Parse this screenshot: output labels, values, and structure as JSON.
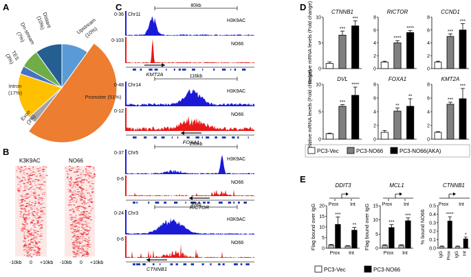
{
  "panels": {
    "A": "A",
    "B": "B",
    "C": "C",
    "D": "D",
    "E": "E"
  },
  "panelA": {
    "slices": [
      {
        "label": "Upstream",
        "pct": "(10%)",
        "value": 10,
        "color": "#5b9bd5"
      },
      {
        "label": "Promoter (51%)",
        "pct": "",
        "value": 51,
        "color": "#ed7d31"
      },
      {
        "label": "Exon",
        "pct": "(3%)",
        "value": 3,
        "color": "#a5a5a5"
      },
      {
        "label": "Intron",
        "pct": "(17%)",
        "value": 17,
        "color": "#ffc000"
      },
      {
        "label": "TES",
        "pct": "(3%)",
        "value": 3,
        "color": "#4472c4"
      },
      {
        "label": "Dn-stream",
        "pct": "(7%)",
        "value": 7,
        "color": "#70ad47"
      },
      {
        "label": "Distant",
        "pct": "(10%)",
        "value": 10,
        "color": "#255e91"
      }
    ]
  },
  "panelB": {
    "labels": [
      "K3K9AC",
      "NO66"
    ],
    "ticks": [
      "-10kb",
      "0",
      "+10kb"
    ]
  },
  "panelC": {
    "tracks": [
      {
        "chr": "Chr11",
        "scale": "80kb",
        "gene": "KMT2A",
        "top_range": "0-36",
        "top_label": "H3K9AC",
        "bot_range": "0-103",
        "bot_label": "NO66"
      },
      {
        "chr": "Chr14",
        "scale": "116kb",
        "gene": "FOXA1",
        "top_range": "0-48",
        "top_label": "H3K9AC",
        "bot_range": "0-12",
        "bot_label": "NO66"
      },
      {
        "chr": "Chr5",
        "scale": "250kb",
        "gene": "RICTOR",
        "top_range": "0-37",
        "top_label": "H3K9AC",
        "bot_range": "0-6",
        "bot_label": "NO66"
      },
      {
        "chr": "Chr3",
        "scale": "30kb",
        "gene": "CTNNB1",
        "top_range": "0-24",
        "top_label": "H3K9AC",
        "bot_range": "0-6",
        "bot_label": "NO66"
      }
    ]
  },
  "chart_data": [
    {
      "type": "bar",
      "panel": "D",
      "title": "CTNNB1",
      "ylabel": "Relative mRNA levels (Fold change)",
      "categories": [
        "PC3-Vec",
        "PC3-NO66",
        "PC3-NO66(AKA)"
      ],
      "values": [
        1,
        6.5,
        8.3
      ],
      "errors": [
        0.3,
        0.8,
        1.0
      ],
      "ylim": [
        0,
        10
      ],
      "yticks": [
        0,
        5,
        10
      ],
      "sig": [
        "",
        "***",
        "***"
      ]
    },
    {
      "type": "bar",
      "panel": "D",
      "title": "RICTOR",
      "categories": [
        "PC3-Vec",
        "PC3-NO66",
        "PC3-NO66(AKA)"
      ],
      "values": [
        1,
        4.0,
        5.6
      ],
      "errors": [
        0.15,
        0.35,
        0.3
      ],
      "ylim": [
        0,
        8
      ],
      "yticks": [
        0,
        2,
        4,
        6,
        8
      ],
      "sig": [
        "",
        "****",
        "****"
      ]
    },
    {
      "type": "bar",
      "panel": "D",
      "title": "CCND1",
      "categories": [
        "PC3-Vec",
        "PC3-NO66",
        "PC3-NO66(AKA)"
      ],
      "values": [
        1,
        5.0,
        6.0
      ],
      "errors": [
        0.15,
        0.4,
        1.0
      ],
      "ylim": [
        0,
        8
      ],
      "yticks": [
        0,
        2,
        4,
        6,
        8
      ],
      "sig": [
        "",
        "***",
        "***"
      ]
    },
    {
      "type": "bar",
      "panel": "D",
      "title": "DVL",
      "ylabel": "Relative mRNA levels (Fold change)",
      "categories": [
        "PC3-Vec",
        "PC3-NO66",
        "PC3-NO66(AKA)"
      ],
      "values": [
        1,
        6.0,
        8.0
      ],
      "errors": [
        0.1,
        0.3,
        1.5
      ],
      "ylim": [
        0,
        10
      ],
      "yticks": [
        0,
        5,
        10
      ],
      "sig": [
        "",
        "***",
        "****"
      ]
    },
    {
      "type": "bar",
      "panel": "D",
      "title": "FOXA1",
      "categories": [
        "PC3-Vec",
        "PC3-NO66",
        "PC3-NO66(AKA)"
      ],
      "values": [
        1,
        4.1,
        4.8
      ],
      "errors": [
        0.25,
        0.45,
        1.1
      ],
      "ylim": [
        0,
        8
      ],
      "yticks": [
        0,
        2,
        4,
        6,
        8
      ],
      "sig": [
        "",
        "**",
        "**"
      ]
    },
    {
      "type": "bar",
      "panel": "D",
      "title": "KMT2A",
      "categories": [
        "PC3-Vec",
        "PC3-NO66",
        "PC3-NO66(AKA)"
      ],
      "values": [
        1,
        5.1,
        5.9
      ],
      "errors": [
        0.1,
        0.3,
        1.5
      ],
      "ylim": [
        0,
        8
      ],
      "yticks": [
        0,
        2,
        4,
        6,
        8
      ],
      "sig": [
        "",
        "***",
        "***"
      ]
    },
    {
      "type": "bar",
      "panel": "E",
      "title": "DDIT3",
      "ylabel": "Flag bound over IgG",
      "groups": [
        "Prox",
        "Int"
      ],
      "series": [
        {
          "name": "PC3-Vec",
          "values": [
            1.5,
            1.0
          ],
          "errors": [
            0.3,
            0.2
          ]
        },
        {
          "name": "PC3-NO66",
          "values": [
            11.2,
            8.5
          ],
          "errors": [
            3.5,
            1.3
          ]
        }
      ],
      "ylim": [
        0,
        20
      ],
      "yticks": [
        0,
        5,
        10,
        15,
        20
      ],
      "sig": [
        [
          "",
          "***"
        ],
        [
          "",
          "**"
        ]
      ]
    },
    {
      "type": "bar",
      "panel": "E",
      "title": "MCL1",
      "ylabel": "Flag bound over IgG",
      "groups": [
        "Prox",
        "Int"
      ],
      "series": [
        {
          "name": "PC3-Vec",
          "values": [
            1.0,
            1.0
          ],
          "errors": [
            0.2,
            0.2
          ]
        },
        {
          "name": "PC3-NO66",
          "values": [
            7.3,
            9.7
          ],
          "errors": [
            1.0,
            1.0
          ]
        }
      ],
      "ylim": [
        0,
        15
      ],
      "yticks": [
        0,
        5,
        10,
        15
      ],
      "sig": [
        [
          "",
          "***"
        ],
        [
          "",
          "***"
        ]
      ]
    },
    {
      "type": "bar",
      "panel": "E",
      "title": "CTNNB1",
      "ylabel": "% bound NO66",
      "categories": [
        "IgG",
        "Prox",
        "IgG",
        "Int"
      ],
      "values": [
        0.02,
        0.32,
        0.02,
        0.11
      ],
      "errors": [
        0.005,
        0.05,
        0.005,
        0.02
      ],
      "colors": [
        "v",
        "n",
        "v",
        "n"
      ],
      "ylim": [
        0,
        0.5
      ],
      "yticks": [
        0.0,
        0.1,
        0.2,
        0.3,
        0.4,
        0.5
      ],
      "sig": [
        "",
        "****",
        "",
        "*"
      ]
    }
  ],
  "legendD": [
    {
      "name": "PC3-Vec",
      "color": "#ffffff"
    },
    {
      "name": "PC3-NO66",
      "color": "#808080"
    },
    {
      "name": "PC3-NO66(AKA)",
      "color": "#000000"
    }
  ],
  "legendE": [
    {
      "name": "PC3-Vec",
      "color": "#ffffff"
    },
    {
      "name": "PC3-NO66",
      "color": "#000000"
    }
  ],
  "colors": {
    "vec": "#ffffff",
    "no66": "#808080",
    "aka": "#000000",
    "h3": "#1a1ad6",
    "no66_track": "#e81818",
    "gene": "#1f3cb5"
  },
  "promoter_diagrams": {
    "prox": "Prox",
    "int": "Int"
  }
}
